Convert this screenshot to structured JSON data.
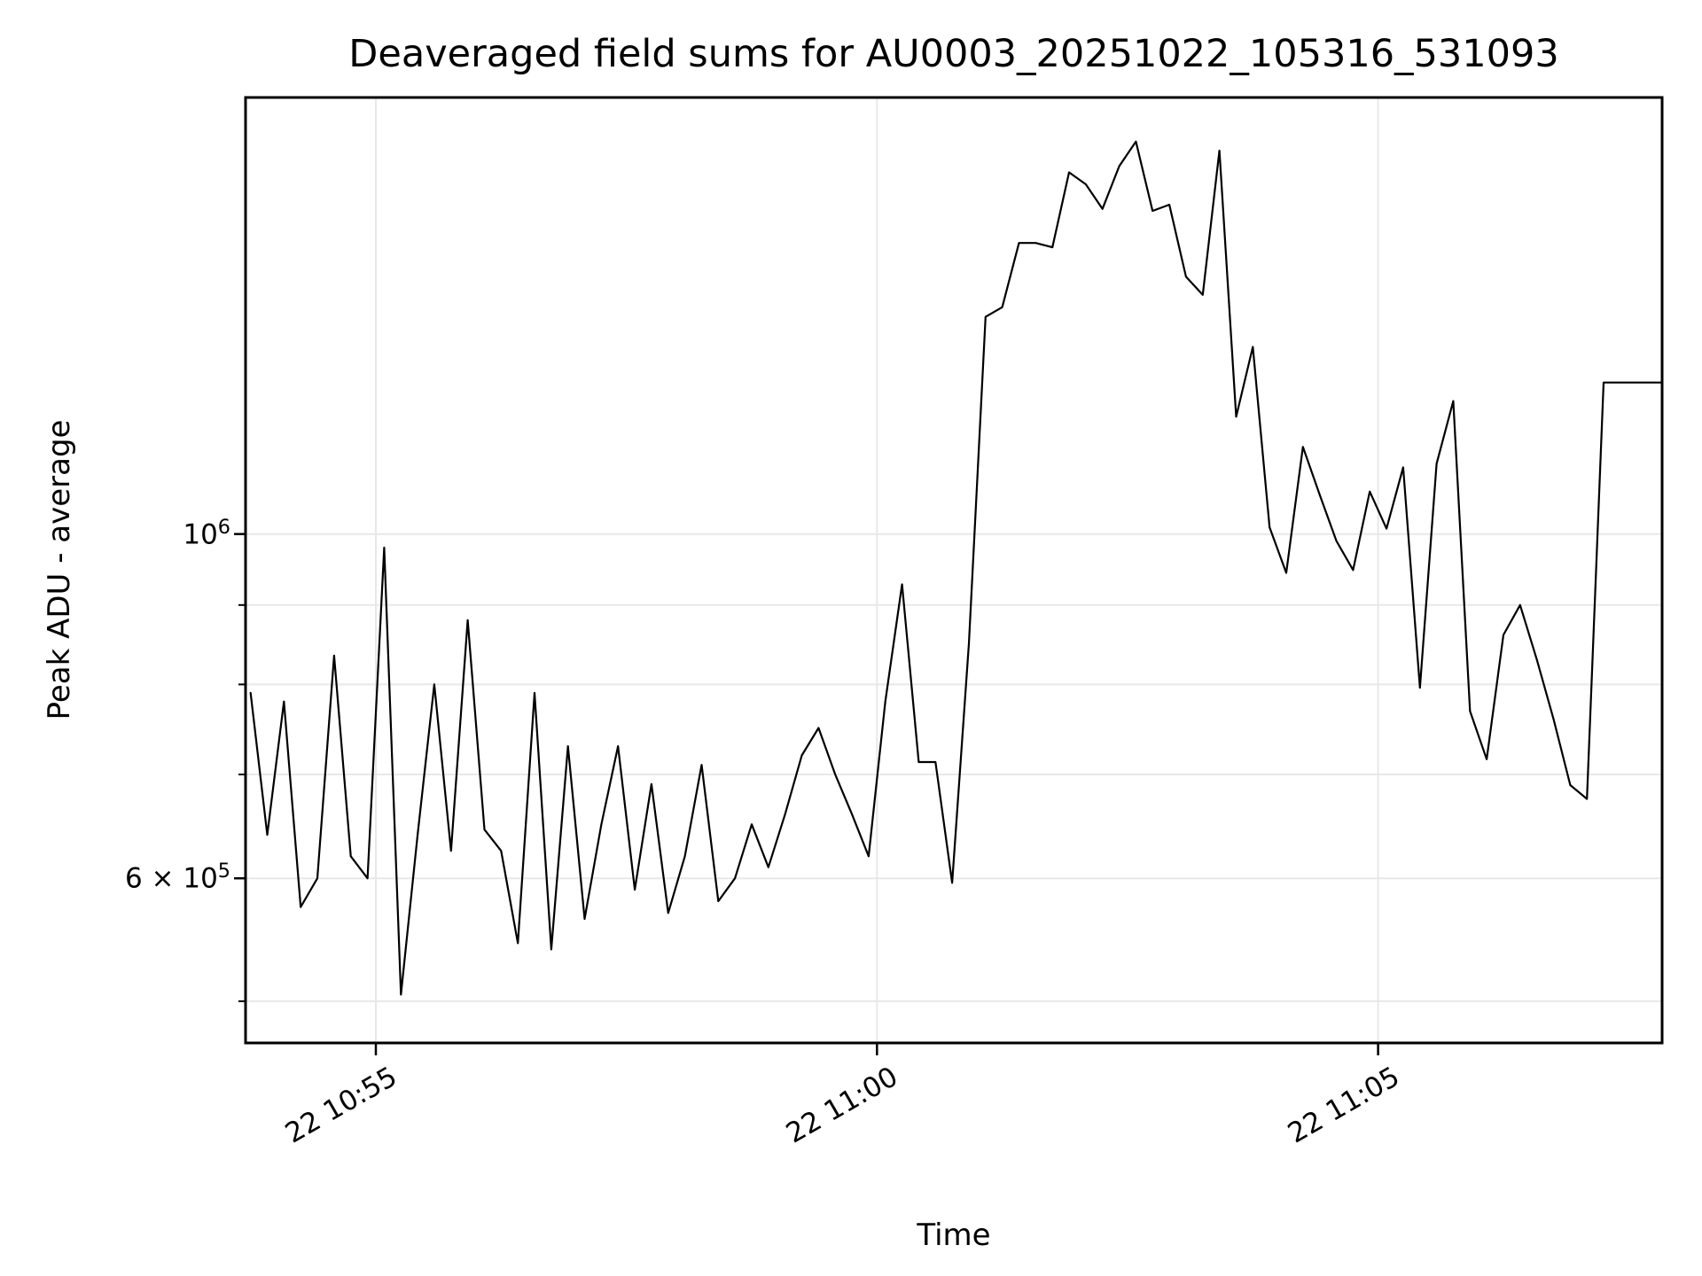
{
  "title": "Deaveraged field sums for AU0003_20251022_105316_531093",
  "chart_data": {
    "type": "line",
    "title": "Deaveraged field sums for AU0003_20251022_105316_531093",
    "xlabel": "Time",
    "ylabel": "Peak ADU - average",
    "y_scale": "log",
    "grid": true,
    "legend": "none",
    "line_color": "#000000",
    "grid_color": "#e8e8e8",
    "x_range": {
      "start": "10:53:42",
      "end": "11:07:50"
    },
    "y_range": {
      "min": 470000,
      "max": 1911000
    },
    "x_ticks": [
      {
        "label": "22 10:55",
        "time": "10:55:00"
      },
      {
        "label": "22 11:00",
        "time": "11:00:00"
      },
      {
        "label": "22 11:05",
        "time": "11:05:00"
      }
    ],
    "y_ticks": [
      {
        "base": "10",
        "exp": "6",
        "value": 1000000
      },
      {
        "base": "6 × 10",
        "exp": "5",
        "value": 600000
      }
    ],
    "y_gridline_values": [
      1000000,
      900000,
      800000,
      700000,
      600000,
      500000
    ],
    "y_minor_tick_values": [
      900000,
      800000,
      700000,
      500000
    ],
    "series": [
      {
        "name": "Peak ADU - average",
        "start_time": "10:53:45",
        "cadence_seconds": 10,
        "values": [
          790000,
          640000,
          780000,
          575000,
          600000,
          835000,
          620000,
          600000,
          980000,
          505000,
          640000,
          800000,
          625000,
          880000,
          645000,
          625000,
          545000,
          790000,
          540000,
          730000,
          565000,
          650000,
          730000,
          590000,
          690000,
          570000,
          620000,
          710000,
          580000,
          600000,
          650000,
          610000,
          660000,
          720000,
          750000,
          700000,
          660000,
          620000,
          780000,
          928000,
          713000,
          713000,
          596000,
          850000,
          1380000,
          1400000,
          1540000,
          1540000,
          1530000,
          1710000,
          1680000,
          1620000,
          1726000,
          1790000,
          1615000,
          1630000,
          1465000,
          1426000,
          1766000,
          1190000,
          1320000,
          1010000,
          944000,
          1138000,
          1060000,
          990000,
          948000,
          1065000,
          1008000,
          1104000,
          796000,
          1110000,
          1218000,
          769000,
          716000,
          861000,
          900000,
          830000,
          760000,
          689000,
          675000,
          1252000,
          1252000,
          1252000,
          1252000
        ]
      }
    ]
  }
}
